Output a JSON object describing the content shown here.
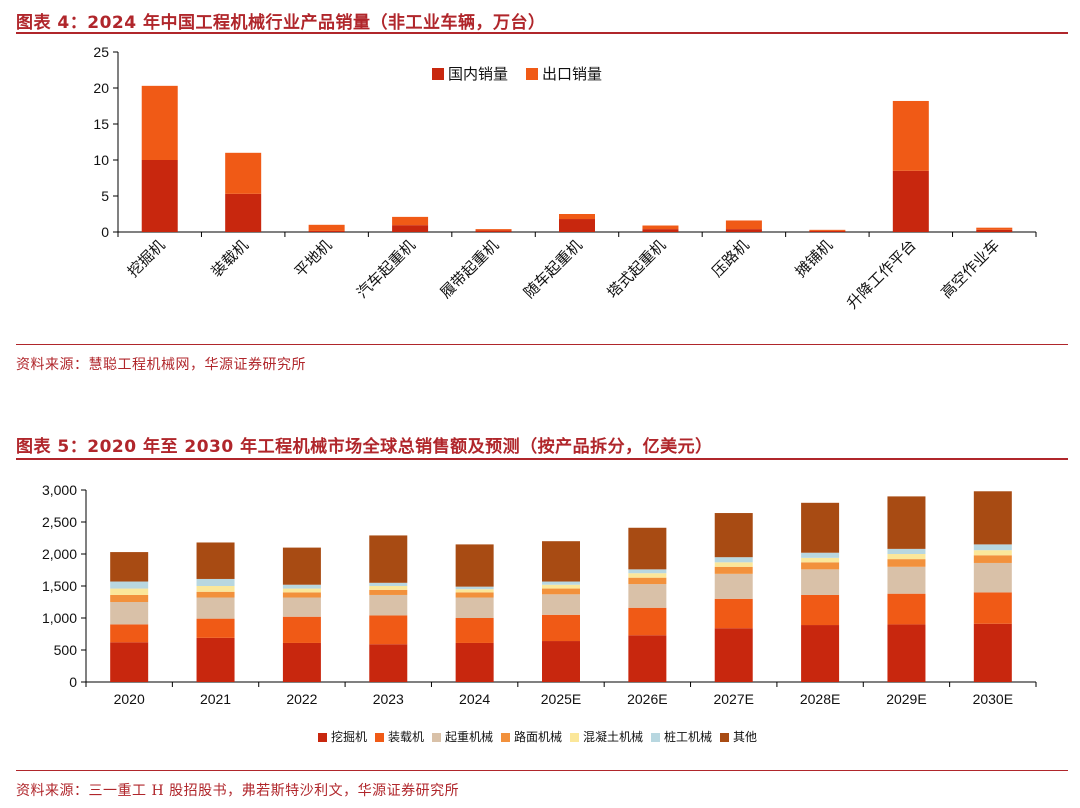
{
  "figure4": {
    "title": "图表 4：2024 年中国工程机械行业产品销量（非工业车辆，万台）",
    "source": "资料来源：慧聪工程机械网，华源证券研究所"
  },
  "figure5": {
    "title": "图表 5：2020 年至 2030 年工程机械市场全球总销售额及预测（按产品拆分，亿美元）",
    "source": "资料来源：三一重工 H 股招股书，弗若斯特沙利文，华源证券研究所"
  },
  "chart_data": [
    {
      "type": "bar",
      "stacked": true,
      "title": "",
      "xlabel": "",
      "ylabel": "",
      "ylim": [
        0,
        25
      ],
      "yticks": [
        0,
        5,
        10,
        15,
        20,
        25
      ],
      "grid": false,
      "legend_position": "top-center",
      "categories": [
        "挖掘机",
        "装载机",
        "平地机",
        "汽车起重机",
        "履带起重机",
        "随车起重机",
        "塔式起重机",
        "压路机",
        "摊铺机",
        "升降工作平台",
        "高空作业车"
      ],
      "series": [
        {
          "name": "国内销量",
          "color": "#c8270e",
          "values": [
            10.0,
            5.3,
            0.15,
            0.95,
            0.2,
            1.8,
            0.4,
            0.4,
            0.15,
            8.5,
            0.3
          ]
        },
        {
          "name": "出口销量",
          "color": "#f05a16",
          "values": [
            10.3,
            5.7,
            0.85,
            1.15,
            0.2,
            0.7,
            0.5,
            1.2,
            0.15,
            9.7,
            0.3
          ]
        }
      ]
    },
    {
      "type": "bar",
      "stacked": true,
      "title": "",
      "xlabel": "",
      "ylabel": "",
      "ylim": [
        0,
        3000
      ],
      "yticks": [
        0,
        500,
        1000,
        1500,
        2000,
        2500,
        3000
      ],
      "ytick_labels": [
        "0",
        "500",
        "1,000",
        "1,500",
        "2,000",
        "2,500",
        "3,000"
      ],
      "grid": false,
      "legend_position": "bottom-center",
      "categories": [
        "2020",
        "2021",
        "2022",
        "2023",
        "2024",
        "2025E",
        "2026E",
        "2027E",
        "2028E",
        "2029E",
        "2030E"
      ],
      "series": [
        {
          "name": "挖掘机",
          "color": "#c8270e",
          "values": [
            620,
            690,
            610,
            590,
            610,
            640,
            730,
            840,
            890,
            900,
            910
          ]
        },
        {
          "name": "装载机",
          "color": "#f05a16",
          "values": [
            280,
            300,
            410,
            450,
            390,
            410,
            430,
            460,
            470,
            480,
            490
          ]
        },
        {
          "name": "起重机械",
          "color": "#d9c1a8",
          "values": [
            350,
            330,
            300,
            320,
            320,
            320,
            370,
            390,
            400,
            420,
            460
          ]
        },
        {
          "name": "路面机械",
          "color": "#f2913c",
          "values": [
            110,
            90,
            80,
            80,
            80,
            90,
            100,
            110,
            110,
            120,
            120
          ]
        },
        {
          "name": "混凝土机械",
          "color": "#fbe79a",
          "values": [
            100,
            90,
            60,
            60,
            50,
            60,
            70,
            70,
            70,
            80,
            80
          ]
        },
        {
          "name": "桩工机械",
          "color": "#b8d7e0",
          "values": [
            110,
            110,
            60,
            50,
            40,
            50,
            60,
            80,
            80,
            80,
            90
          ]
        },
        {
          "name": "其他",
          "color": "#a84b13",
          "values": [
            460,
            570,
            580,
            740,
            660,
            630,
            650,
            690,
            780,
            820,
            830
          ]
        }
      ]
    }
  ]
}
